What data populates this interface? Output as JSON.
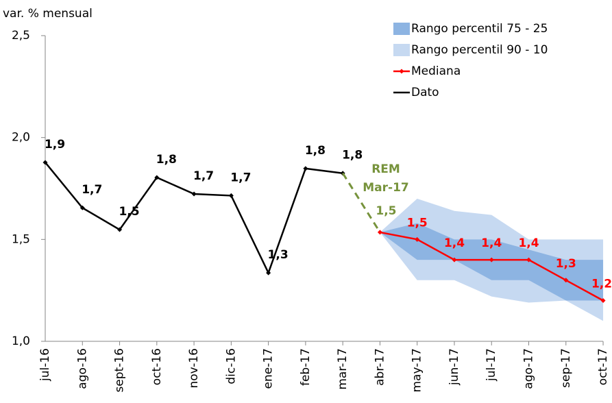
{
  "chart_data": {
    "type": "line",
    "y_label": "var. % mensual",
    "categories": [
      "jul-16",
      "ago-16",
      "sept-16",
      "oct-16",
      "nov-16",
      "dic-16",
      "ene-17",
      "feb-17",
      "mar-17",
      "abr-17",
      "may-17",
      "jun-17",
      "jul-17",
      "ago-17",
      "sep-17",
      "oct-17"
    ],
    "ylim": [
      1.0,
      2.5
    ],
    "yticks": [
      {
        "value": 1.0,
        "label": "1,0"
      },
      {
        "value": 1.5,
        "label": "1,5"
      },
      {
        "value": 2.0,
        "label": "2,0"
      },
      {
        "value": 2.5,
        "label": "2,5"
      }
    ],
    "series": [
      {
        "name": "Rango percentil 75 - 25",
        "type": "band",
        "color": "#8db4e2",
        "upper": [
          null,
          null,
          null,
          null,
          null,
          null,
          null,
          null,
          null,
          1.535,
          1.58,
          1.5,
          1.5,
          1.45,
          1.4,
          1.4
        ],
        "lower": [
          null,
          null,
          null,
          null,
          null,
          null,
          null,
          null,
          null,
          1.535,
          1.4,
          1.4,
          1.3,
          1.3,
          1.2,
          1.2
        ]
      },
      {
        "name": "Rango percentil 90 - 10",
        "type": "band",
        "color": "#c6d9f1",
        "upper": [
          null,
          null,
          null,
          null,
          null,
          null,
          null,
          null,
          null,
          1.535,
          1.7,
          1.64,
          1.62,
          1.5,
          1.5,
          1.5
        ],
        "lower": [
          null,
          null,
          null,
          null,
          null,
          null,
          null,
          null,
          null,
          1.535,
          1.3,
          1.3,
          1.22,
          1.19,
          1.2,
          1.1
        ]
      },
      {
        "name": "Mediana",
        "type": "line",
        "color": "#ff0000",
        "values": [
          null,
          null,
          null,
          null,
          null,
          null,
          null,
          null,
          null,
          1.535,
          1.5,
          1.4,
          1.4,
          1.4,
          1.3,
          1.2
        ],
        "value_labels": [
          null,
          null,
          null,
          null,
          null,
          null,
          null,
          null,
          null,
          null,
          "1,5",
          "1,4",
          "1,4",
          "1,4",
          "1,3",
          "1,2"
        ]
      },
      {
        "name": "Dato",
        "type": "line",
        "color": "#000000",
        "values": [
          1.878,
          1.655,
          1.548,
          1.804,
          1.723,
          1.715,
          1.336,
          1.848,
          1.825,
          null,
          null,
          null,
          null,
          null,
          null,
          null
        ],
        "value_labels": [
          "1,9",
          "1,7",
          "1,5",
          "1,8",
          "1,7",
          "1,7",
          "1,3",
          "1,8",
          "1,8",
          null,
          null,
          null,
          null,
          null,
          null,
          null
        ]
      },
      {
        "type": "line",
        "dashed": true,
        "color": "#77933c",
        "values": [
          null,
          null,
          null,
          null,
          null,
          null,
          null,
          null,
          1.825,
          1.535,
          null,
          null,
          null,
          null,
          null,
          null
        ],
        "value_labels": [
          null,
          null,
          null,
          null,
          null,
          null,
          null,
          null,
          null,
          "1,5",
          null,
          null,
          null,
          null,
          null,
          null
        ]
      }
    ],
    "annotation": [
      "REM",
      "Mar-17"
    ],
    "annotation_color": "#77933c"
  }
}
